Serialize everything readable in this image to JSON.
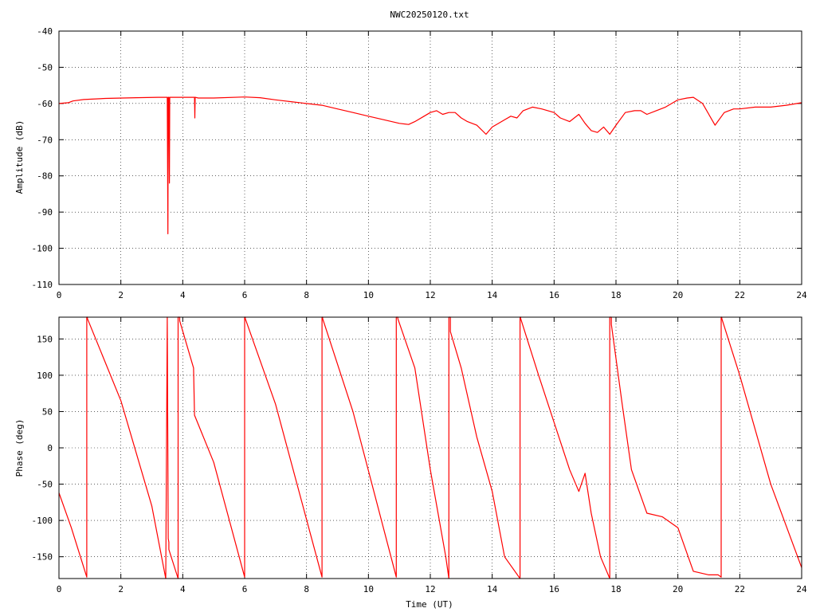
{
  "window": {
    "title": "NWC20250120.txt"
  },
  "colors": {
    "trace": "#ff0000",
    "axes": "#000000",
    "background": "#ffffff"
  },
  "chart_data": [
    {
      "type": "line",
      "title": "NWC20250120.txt",
      "xlabel": "",
      "ylabel": "Amplitude (dB)",
      "xlim": [
        0,
        24
      ],
      "ylim": [
        -110,
        -40
      ],
      "grid": true,
      "x_ticks": [
        "0",
        "2",
        "4",
        "6",
        "8",
        "10",
        "12",
        "14",
        "16",
        "18",
        "20",
        "22",
        "24"
      ],
      "y_ticks": [
        "-40",
        "-50",
        "-60",
        "-70",
        "-80",
        "-90",
        "-100",
        "-110"
      ],
      "series": [
        {
          "x": [
            0,
            0.3,
            0.45,
            0.8,
            1.5,
            2.5,
            3.2,
            3.5,
            3.52,
            3.53,
            3.55,
            3.57,
            3.58,
            3.6,
            4.0,
            4.38,
            4.39,
            4.4,
            4.5,
            5.0,
            6.0,
            6.5,
            7.0,
            7.5,
            8.0,
            8.5,
            9.0,
            9.5,
            10.0,
            10.5,
            11.0,
            11.3,
            11.5,
            11.8,
            12.0,
            12.2,
            12.4,
            12.6,
            12.8,
            13.0,
            13.2,
            13.5,
            13.8,
            14.0,
            14.3,
            14.6,
            14.8,
            15.0,
            15.3,
            15.6,
            16.0,
            16.2,
            16.5,
            16.8,
            17.0,
            17.2,
            17.4,
            17.6,
            17.8,
            18.0,
            18.3,
            18.6,
            18.8,
            19.0,
            19.3,
            19.6,
            20.0,
            20.3,
            20.5,
            20.8,
            21.0,
            21.2,
            21.5,
            21.8,
            22.0,
            22.5,
            23.0,
            23.5,
            24.0
          ],
          "y": [
            -60,
            -59.8,
            -59.3,
            -58.9,
            -58.6,
            -58.4,
            -58.3,
            -58.3,
            -96,
            -58.3,
            -58.3,
            -82,
            -58.3,
            -58.3,
            -58.3,
            -58.3,
            -64,
            -58.3,
            -58.5,
            -58.5,
            -58.2,
            -58.4,
            -59,
            -59.5,
            -60,
            -60.5,
            -61.5,
            -62.5,
            -63.5,
            -64.5,
            -65.5,
            -65.8,
            -65,
            -63.5,
            -62.5,
            -62,
            -63,
            -62.5,
            -62.5,
            -64,
            -65,
            -66,
            -68.5,
            -66.5,
            -65,
            -63.5,
            -64,
            -62,
            -61,
            -61.5,
            -62.5,
            -64,
            -65,
            -63,
            -65.5,
            -67.5,
            -68,
            -66.5,
            -68.5,
            -66,
            -62.5,
            -62,
            -62,
            -63,
            -62,
            -61,
            -59,
            -58.5,
            -58.3,
            -60,
            -63,
            -66,
            -62.5,
            -61.5,
            -61.5,
            -61,
            -61,
            -60.5,
            -59.8
          ]
        }
      ]
    },
    {
      "type": "line",
      "title": "",
      "xlabel": "Time (UT)",
      "ylabel": "Phase (deg)",
      "xlim": [
        0,
        24
      ],
      "ylim": [
        -180,
        180
      ],
      "grid": true,
      "x_ticks": [
        "0",
        "2",
        "4",
        "6",
        "8",
        "10",
        "12",
        "14",
        "16",
        "18",
        "20",
        "22",
        "24"
      ],
      "y_ticks": [
        "150",
        "100",
        "50",
        "0",
        "-50",
        "-100",
        "-150"
      ],
      "series": [
        {
          "x": [
            0,
            0.4,
            0.9,
            0.9,
            0.92,
            0.92,
            2,
            3,
            3.45,
            3.45,
            3.5,
            3.5,
            3.53,
            3.53,
            3.55,
            3.55,
            3.85,
            3.85,
            3.9,
            3.9,
            4.35,
            4.35,
            4.38,
            4.38,
            5.0,
            6.0,
            6.0,
            6.02,
            6.02,
            7.0,
            8.5,
            8.5,
            8.52,
            8.52,
            9.5,
            10.9,
            10.9,
            10.95,
            10.95,
            11.5,
            12.0,
            12.5,
            12.6,
            12.6,
            12.65,
            12.65,
            13.0,
            13.5,
            14.0,
            14.4,
            14.9,
            14.9,
            14.92,
            14.92,
            15.5,
            16.0,
            16.5,
            16.8,
            17.0,
            17.2,
            17.5,
            17.8,
            17.8,
            17.85,
            17.85,
            18.2,
            18.5,
            19.0,
            19.5,
            20.0,
            20.5,
            21.0,
            21.3,
            21.4,
            21.4,
            21.42,
            21.42,
            22.0,
            23.0,
            24.0
          ],
          "y": [
            -62,
            -110,
            -178,
            180,
            180,
            178,
            65,
            -80,
            -180,
            -180,
            180,
            180,
            -125,
            -125,
            -130,
            -140,
            -180,
            180,
            180,
            175,
            110,
            110,
            45,
            45,
            -20,
            -178,
            180,
            180,
            178,
            60,
            -178,
            180,
            180,
            178,
            50,
            -178,
            180,
            180,
            178,
            110,
            -30,
            -150,
            -180,
            180,
            180,
            160,
            110,
            15,
            -60,
            -150,
            -180,
            180,
            180,
            178,
            100,
            35,
            -30,
            -60,
            -35,
            -90,
            -150,
            -180,
            180,
            180,
            170,
            60,
            -30,
            -90,
            -95,
            -110,
            -170,
            -175,
            -175,
            -178,
            180,
            180,
            178,
            100,
            -50,
            -165
          ]
        }
      ]
    }
  ]
}
